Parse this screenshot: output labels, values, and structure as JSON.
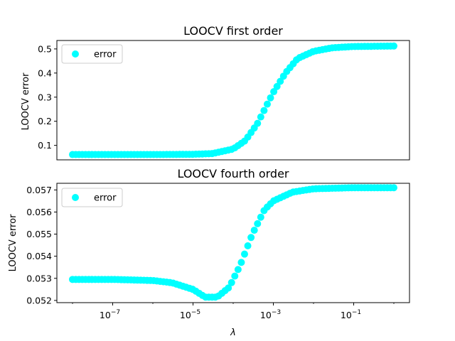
{
  "chart_data": [
    {
      "type": "scatter",
      "title": "LOOCV first order",
      "xlabel": "",
      "ylabel": "LOOCV error",
      "xscale": "log",
      "xlim": [
        1e-08,
        1
      ],
      "ylim": [
        0.04,
        0.535
      ],
      "yticks": [
        0.1,
        0.2,
        0.3,
        0.4,
        0.5
      ],
      "ytick_labels": [
        "0.1",
        "0.2",
        "0.3",
        "0.4",
        "0.5"
      ],
      "show_xticks": false,
      "legend": [
        "error"
      ],
      "legend_position": "upper left",
      "grid": false,
      "color": "#00ffff",
      "series": [
        {
          "name": "error",
          "x": [
            1e-08,
            1e-07,
            1e-06,
            1e-05,
            3e-05,
            0.0001,
            0.0002,
            0.0004,
            0.0007,
            0.001,
            0.002,
            0.004,
            0.01,
            0.03,
            0.1,
            1
          ],
          "y": [
            0.062,
            0.062,
            0.062,
            0.063,
            0.066,
            0.085,
            0.12,
            0.19,
            0.27,
            0.32,
            0.4,
            0.46,
            0.49,
            0.505,
            0.51,
            0.512
          ]
        }
      ]
    },
    {
      "type": "scatter",
      "title": "LOOCV fourth order",
      "xlabel": "λ",
      "ylabel": "LOOCV error",
      "xscale": "log",
      "xlim": [
        1e-08,
        1
      ],
      "ylim": [
        0.0519,
        0.0573
      ],
      "yticks": [
        0.052,
        0.053,
        0.054,
        0.055,
        0.056,
        0.057
      ],
      "ytick_labels": [
        "0.052",
        "0.053",
        "0.054",
        "0.055",
        "0.056",
        "0.057"
      ],
      "xticks": [
        1e-07,
        1e-05,
        0.001,
        0.1
      ],
      "xtick_bases": [
        "10",
        "10",
        "10",
        "10"
      ],
      "xtick_exponents": [
        "−7",
        "−5",
        "−3",
        "−1"
      ],
      "legend": [
        "error"
      ],
      "legend_position": "upper left",
      "grid": false,
      "color": "#00ffff",
      "series": [
        {
          "name": "error",
          "x": [
            1e-08,
            1e-07,
            1e-06,
            3e-06,
            1e-05,
            2e-05,
            4e-05,
            8e-05,
            0.00015,
            0.0003,
            0.0006,
            0.001,
            0.003,
            0.01,
            0.1,
            1
          ],
          "y": [
            0.05295,
            0.05295,
            0.0529,
            0.0528,
            0.0525,
            0.05215,
            0.05215,
            0.0526,
            0.0536,
            0.055,
            0.0561,
            0.0565,
            0.0569,
            0.05705,
            0.0571,
            0.0571
          ]
        }
      ]
    }
  ]
}
